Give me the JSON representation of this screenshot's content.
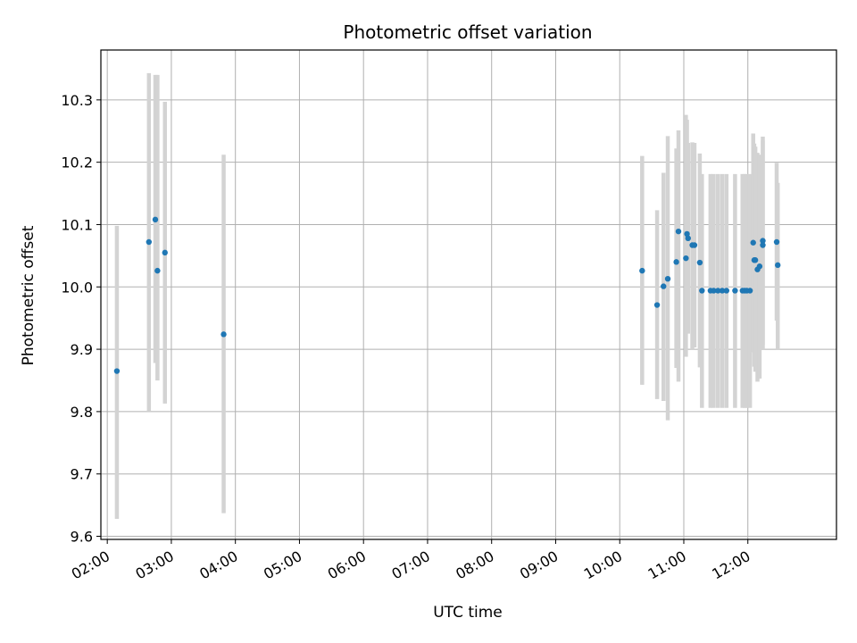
{
  "chart_data": {
    "type": "scatter",
    "title": "Photometric offset variation",
    "xlabel": "UTC time",
    "ylabel": "Photometric offset",
    "x_range": [
      "01:54",
      "13:23"
    ],
    "ylim": [
      9.595,
      10.38
    ],
    "x_ticks": [
      "02:00",
      "03:00",
      "04:00",
      "05:00",
      "06:00",
      "07:00",
      "08:00",
      "09:00",
      "10:00",
      "11:00",
      "12:00"
    ],
    "y_ticks": [
      9.6,
      9.7,
      9.8,
      9.9,
      10.0,
      10.1,
      10.2,
      10.3
    ],
    "y_tick_labels": [
      "9.6",
      "9.7",
      "9.8",
      "9.9",
      "10.0",
      "10.1",
      "10.2",
      "10.3"
    ],
    "grid": true,
    "colors": {
      "points": "#1f77b4",
      "error_bars": "#d3d3d3",
      "grid": "#b0b0b0"
    },
    "points": [
      {
        "x": "02:09",
        "y": 9.865,
        "err_low": 9.628,
        "err_high": 10.098
      },
      {
        "x": "02:39",
        "y": 10.072,
        "err_low": 9.8,
        "err_high": 10.343
      },
      {
        "x": "02:45",
        "y": 10.108,
        "err_low": 9.878,
        "err_high": 10.34
      },
      {
        "x": "02:47",
        "y": 10.026,
        "err_low": 9.85,
        "err_high": 10.34
      },
      {
        "x": "02:54",
        "y": 10.055,
        "err_low": 9.813,
        "err_high": 10.297
      },
      {
        "x": "03:49",
        "y": 9.924,
        "err_low": 9.637,
        "err_high": 10.212
      },
      {
        "x": "10:21",
        "y": 10.026,
        "err_low": 9.843,
        "err_high": 10.21
      },
      {
        "x": "10:35",
        "y": 9.971,
        "err_low": 9.82,
        "err_high": 10.123
      },
      {
        "x": "10:41",
        "y": 10.001,
        "err_low": 9.817,
        "err_high": 10.183
      },
      {
        "x": "10:45",
        "y": 10.013,
        "err_low": 9.786,
        "err_high": 10.242
      },
      {
        "x": "10:53",
        "y": 10.04,
        "err_low": 9.87,
        "err_high": 10.222
      },
      {
        "x": "10:55",
        "y": 10.089,
        "err_low": 9.848,
        "err_high": 10.251
      },
      {
        "x": "11:02",
        "y": 10.046,
        "err_low": 9.888,
        "err_high": 10.276
      },
      {
        "x": "11:03",
        "y": 10.085,
        "err_low": 9.927,
        "err_high": 10.268
      },
      {
        "x": "11:04",
        "y": 10.078,
        "err_low": 9.925,
        "err_high": 10.231
      },
      {
        "x": "11:08",
        "y": 10.067,
        "err_low": 9.9,
        "err_high": 10.232
      },
      {
        "x": "11:10",
        "y": 10.067,
        "err_low": 9.903,
        "err_high": 10.231
      },
      {
        "x": "11:15",
        "y": 10.039,
        "err_low": 9.871,
        "err_high": 10.214
      },
      {
        "x": "11:17",
        "y": 9.994,
        "err_low": 9.806,
        "err_high": 10.181
      },
      {
        "x": "11:25",
        "y": 9.994,
        "err_low": 9.806,
        "err_high": 10.181
      },
      {
        "x": "11:28",
        "y": 9.994,
        "err_low": 9.806,
        "err_high": 10.181
      },
      {
        "x": "11:32",
        "y": 9.994,
        "err_low": 9.806,
        "err_high": 10.181
      },
      {
        "x": "11:36",
        "y": 9.994,
        "err_low": 9.806,
        "err_high": 10.181
      },
      {
        "x": "11:40",
        "y": 9.994,
        "err_low": 9.806,
        "err_high": 10.181
      },
      {
        "x": "11:48",
        "y": 9.994,
        "err_low": 9.806,
        "err_high": 10.181
      },
      {
        "x": "11:55",
        "y": 9.994,
        "err_low": 9.806,
        "err_high": 10.181
      },
      {
        "x": "11:57",
        "y": 9.994,
        "err_low": 9.806,
        "err_high": 10.181
      },
      {
        "x": "11:59",
        "y": 9.994,
        "err_low": 9.806,
        "err_high": 10.181
      },
      {
        "x": "12:02",
        "y": 9.994,
        "err_low": 9.806,
        "err_high": 10.181
      },
      {
        "x": "12:05",
        "y": 10.071,
        "err_low": 9.895,
        "err_high": 10.246
      },
      {
        "x": "12:06",
        "y": 10.043,
        "err_low": 9.872,
        "err_high": 10.23
      },
      {
        "x": "12:07",
        "y": 10.043,
        "err_low": 9.864,
        "err_high": 10.225
      },
      {
        "x": "12:09",
        "y": 10.028,
        "err_low": 9.848,
        "err_high": 10.215
      },
      {
        "x": "12:11",
        "y": 10.033,
        "err_low": 9.853,
        "err_high": 10.212
      },
      {
        "x": "12:14",
        "y": 10.074,
        "err_low": 9.907,
        "err_high": 10.241
      },
      {
        "x": "12:14",
        "y": 10.067,
        "err_low": 9.9,
        "err_high": 10.235
      },
      {
        "x": "12:27",
        "y": 10.072,
        "err_low": 9.946,
        "err_high": 10.199
      },
      {
        "x": "12:28",
        "y": 10.035,
        "err_low": 9.9,
        "err_high": 10.167
      }
    ]
  }
}
